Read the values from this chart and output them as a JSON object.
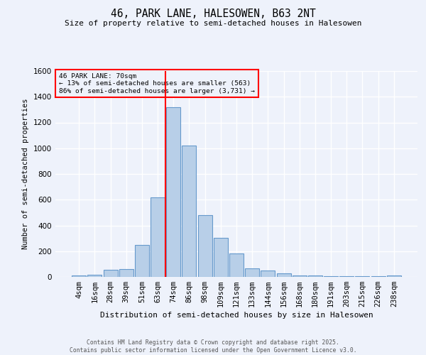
{
  "title": "46, PARK LANE, HALESOWEN, B63 2NT",
  "subtitle": "Size of property relative to semi-detached houses in Halesowen",
  "xlabel": "Distribution of semi-detached houses by size in Halesowen",
  "ylabel": "Number of semi-detached properties",
  "bar_labels": [
    "4sqm",
    "16sqm",
    "28sqm",
    "39sqm",
    "51sqm",
    "63sqm",
    "74sqm",
    "86sqm",
    "98sqm",
    "109sqm",
    "121sqm",
    "133sqm",
    "144sqm",
    "156sqm",
    "168sqm",
    "180sqm",
    "191sqm",
    "203sqm",
    "215sqm",
    "226sqm",
    "238sqm"
  ],
  "bar_values": [
    10,
    15,
    55,
    60,
    250,
    620,
    1320,
    1020,
    480,
    305,
    180,
    65,
    50,
    30,
    10,
    10,
    5,
    5,
    5,
    5,
    10
  ],
  "bar_color": "#b8cfe8",
  "bar_edge_color": "#6699cc",
  "vline_x": 5.5,
  "vline_color": "red",
  "annotation_title": "46 PARK LANE: 70sqm",
  "annotation_line1": "← 13% of semi-detached houses are smaller (563)",
  "annotation_line2": "86% of semi-detached houses are larger (3,731) →",
  "ylim": [
    0,
    1600
  ],
  "yticks": [
    0,
    200,
    400,
    600,
    800,
    1000,
    1200,
    1400,
    1600
  ],
  "background_color": "#eef2fb",
  "grid_color": "white",
  "footer_line1": "Contains HM Land Registry data © Crown copyright and database right 2025.",
  "footer_line2": "Contains public sector information licensed under the Open Government Licence v3.0."
}
